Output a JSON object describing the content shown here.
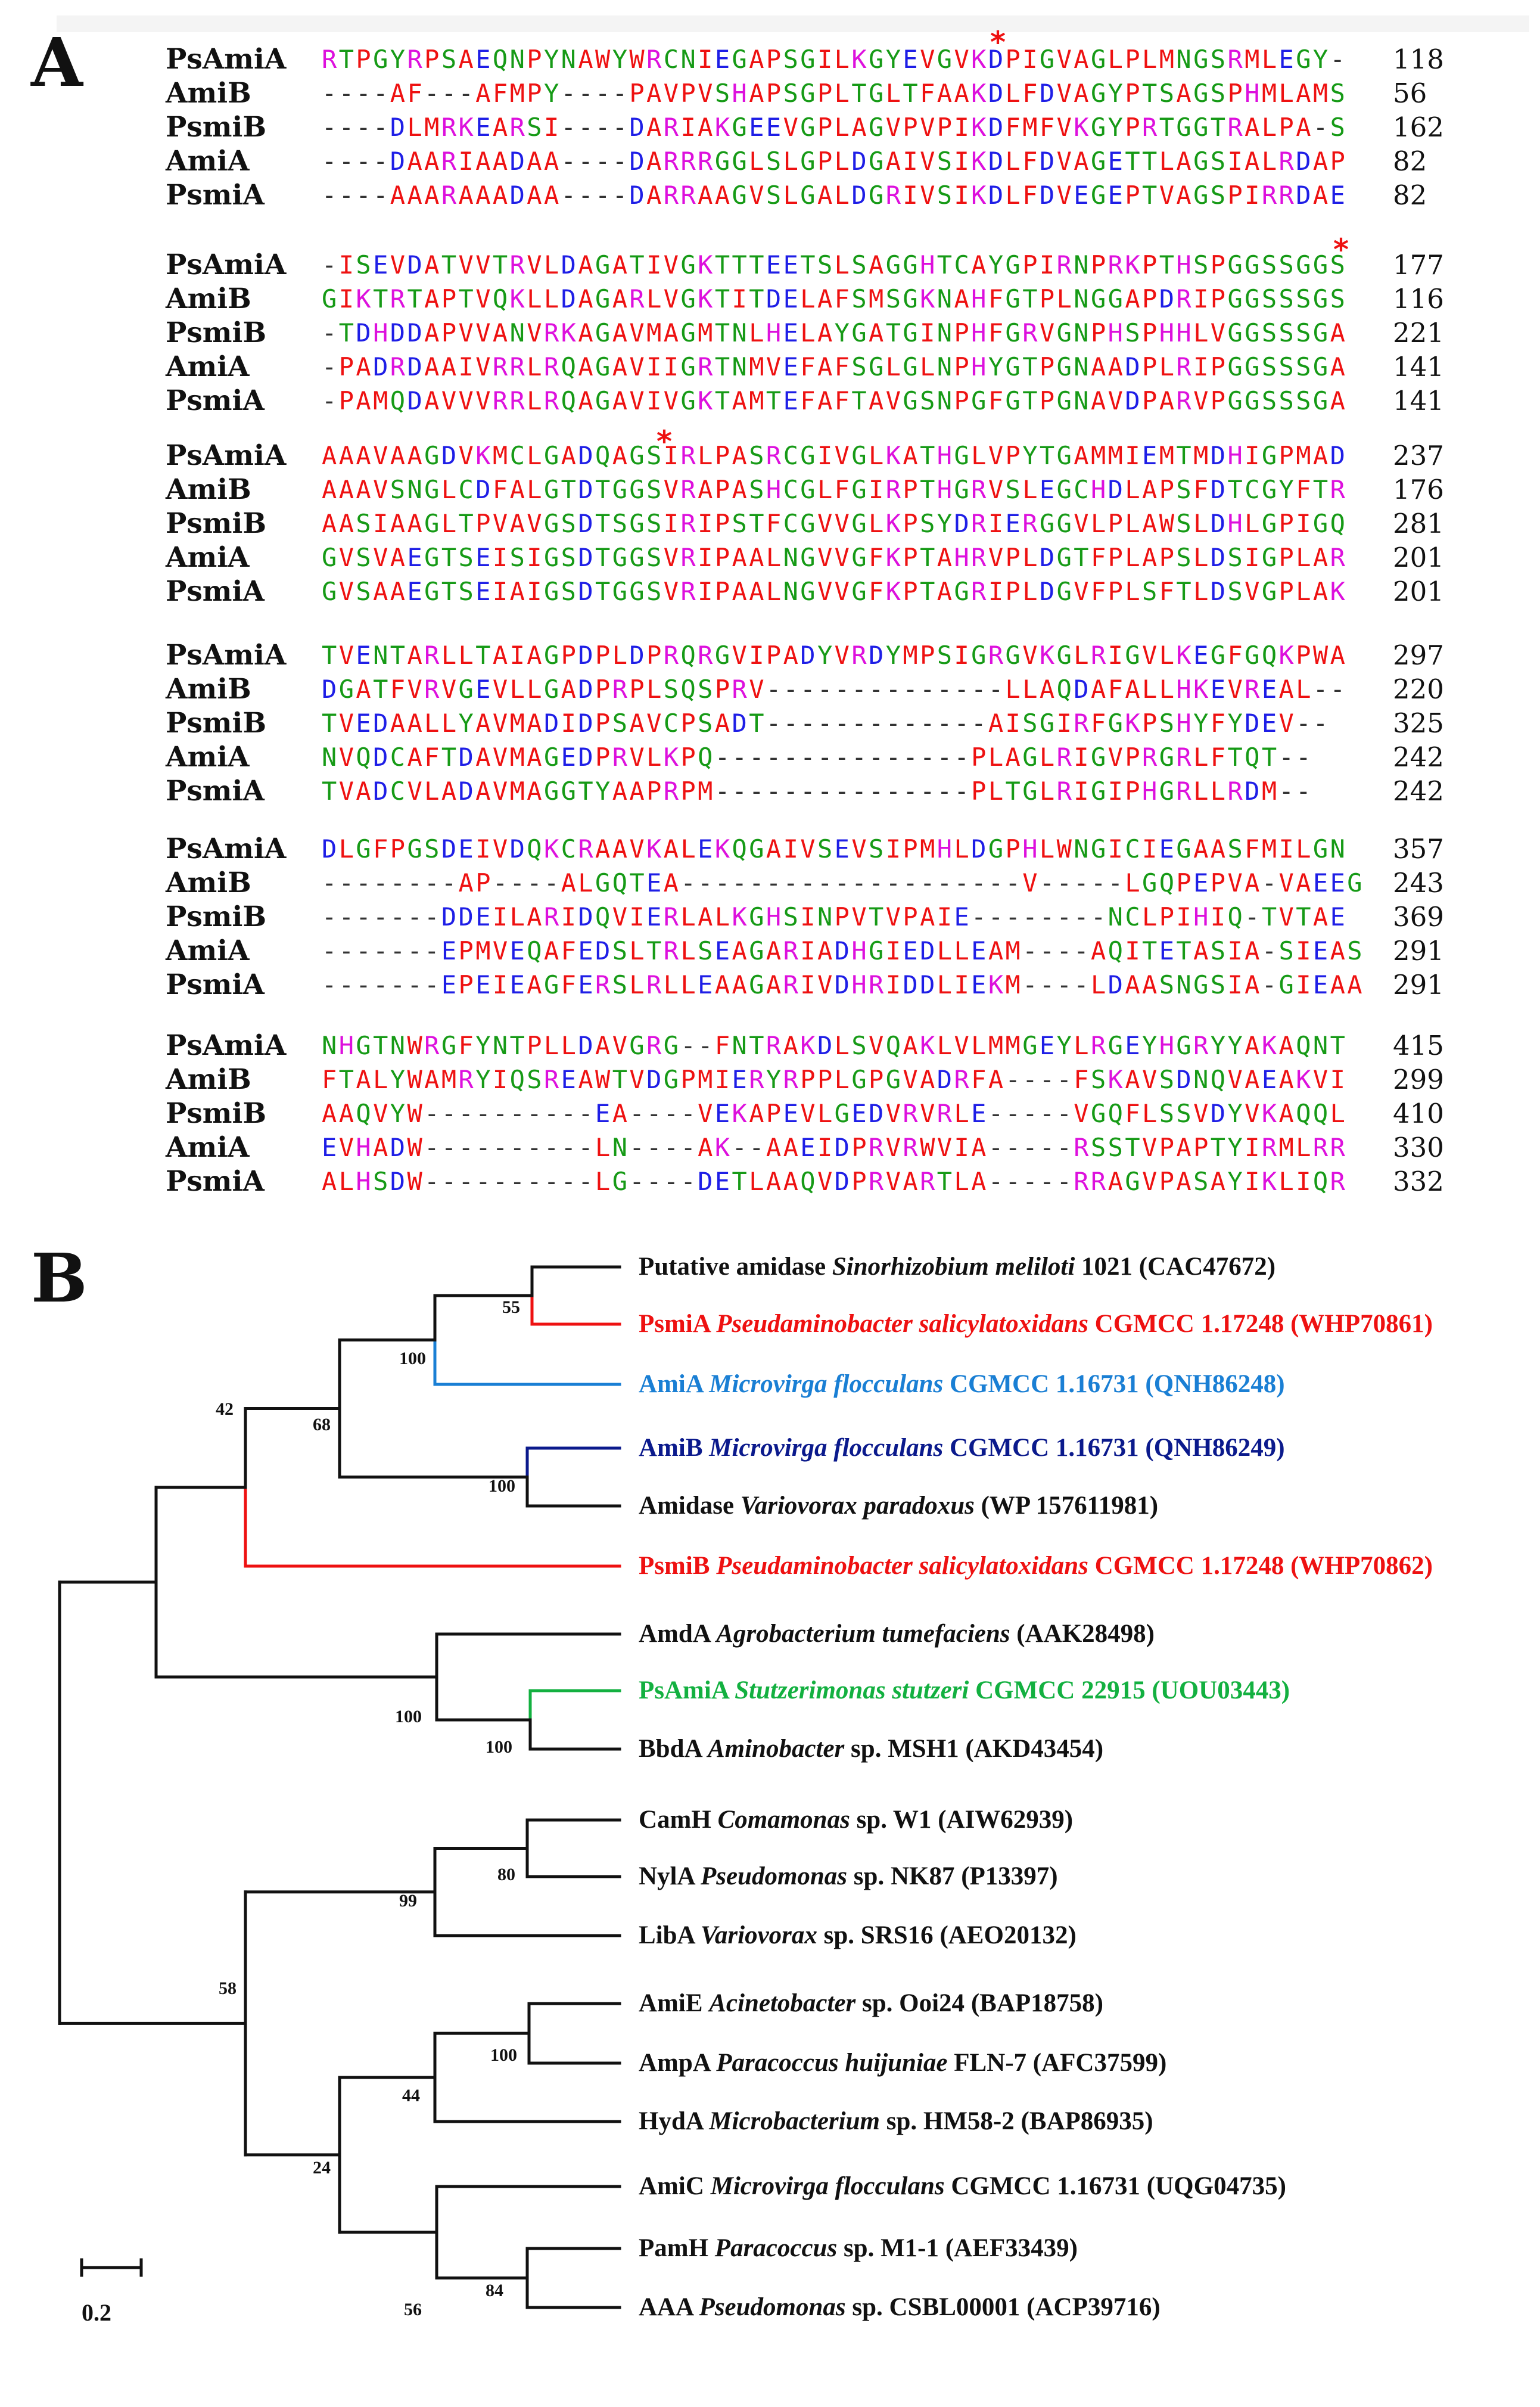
{
  "panels": {
    "a": "A",
    "b": "B"
  },
  "alignment": {
    "blocks": [
      [
        {
          "name": "PsAmiA",
          "seq": "RTPGYRPSAEQNPYNAWYWRCNIEGAPSGILKGYEVGVKDPIGVAGLPLMNGSRMLEGY-",
          "end": "118"
        },
        {
          "name": "AmiB",
          "seq": "----AF---AFMPY----PAVPVSHAPSGPLTGLTFAAKDLFDVAGYPTSAGSPHMLAMS",
          "end": "56"
        },
        {
          "name": "PsmiB",
          "seq": "----DLMRKEARSI----DARIAKGEEVGPLAGVPVPIKDFMFVKGYPRTGGTRALPA-S",
          "end": "162"
        },
        {
          "name": "AmiA",
          "seq": "----DAARIAADAA----DARRRGGLSLGPLDGAIVSIKDLFDVAGETTLAGSIALRDAP",
          "end": "82"
        },
        {
          "name": "PsmiA",
          "seq": "----AAARAAADAA----DARRAAGVSLGALDGRIVSIKDLFDVEGEPTVAGSPIRRDAE",
          "end": "82"
        }
      ],
      [
        {
          "name": "PsAmiA",
          "seq": "-ISEVDATVVTRVLDAGATIVGKTTTEETSLSAGGHTCAYGPIRNPRKPTHSPGGSSGGS",
          "end": "177"
        },
        {
          "name": "AmiB",
          "seq": "GIKTRTAPTVQKLLDAGARLVGKTITDELAFSMSGKNAHFGTPLNGGAPDRIPGGSSSGS",
          "end": "116"
        },
        {
          "name": "PsmiB",
          "seq": "-TDHDDAPVVANVRKAGAVMAGMTNLHELAYGATGINPHFGRVGNPHSPHHLVGGSSSGA",
          "end": "221"
        },
        {
          "name": "AmiA",
          "seq": "-PADRDAAIVRRLRQAGAVIIGRTNMVEFAFSGLGLNPHYGTPGNAADPLRIPGGSSSGA",
          "end": "141"
        },
        {
          "name": "PsmiA",
          "seq": "-PAMQDAVVVRRLRQAGAVIVGKTAMTEFAFTAVGSNPGFGTPGNAVDPARVPGGSSSGA",
          "end": "141"
        }
      ],
      [
        {
          "name": "PsAmiA",
          "seq": "AAAVAAGDVKMCLGADQAGSIRLPASRCGIVGLKATHGLVPYTGAMMIEMTMDHIGPMAD",
          "end": "237"
        },
        {
          "name": "AmiB",
          "seq": "AAAVSNGLCDFALGTDTGGSVRAPASHCGLFGIRPTHGRVSLEGCHDLAPSFDTCGYFTR",
          "end": "176"
        },
        {
          "name": "PsmiB",
          "seq": "AASIAAGLTPVAVGSDTSGSIRIPSTFCGVVGLKPSYDRIERGGVLPLAWSLDHLGPIGQ",
          "end": "281"
        },
        {
          "name": "AmiA",
          "seq": "GVSVAEGTSEISIGSDTGGSVRIPAALNGVVGFKPTAHRVPLDGTFPLAPSLDSIGPLAR",
          "end": "201"
        },
        {
          "name": "PsmiA",
          "seq": "GVSAAEGTSEIAIGSDTGGSVRIPAALNGVVGFKPTAGRIPLDGVFPLSFTLDSVGPLAK",
          "end": "201"
        }
      ],
      [
        {
          "name": "PsAmiA",
          "seq": "TVENTARLLTAIAGPDPLDPRQRGVIPADYVRDYMPSIGRGVKGLRIGVLKEGFGQKPWA",
          "end": "297"
        },
        {
          "name": "AmiB",
          "seq": "DGATFVRVGEVLLGADPRPLSQSPRV--------------LLAQDAFALLHKEVREAL--",
          "end": "220"
        },
        {
          "name": "PsmiB",
          "seq": "TVEDAALLYAVMADIDPSAVCPSADT-------------AISGIRFGKPSHYFYDEV--",
          "end": "325"
        },
        {
          "name": "AmiA",
          "seq": "NVQDCAFTDAVMAGEDPRVLKPQ---------------PLAGLRIGVPRGRLFTQT--",
          "end": "242"
        },
        {
          "name": "PsmiA",
          "seq": "TVADCVLADAVMAGGTYAAPRPM---------------PLTGLRIGIPHGRLLRDM--",
          "end": "242"
        }
      ],
      [
        {
          "name": "PsAmiA",
          "seq": "DLGFPGSDEIVDQKCRAAVKALEKQGAIVSEVSIPMHLDGPHLWNGICIEGAASFMILGN",
          "end": "357"
        },
        {
          "name": "AmiB",
          "seq": "--------AP----ALGQTEA--------------------V-----LGQPEPVA-VAEEG",
          "end": "243"
        },
        {
          "name": "PsmiB",
          "seq": "-------DDEILARIDQVIERLALKGHSINPVTVPAIE--------NCLPIHIQ-TVTAE",
          "end": "369"
        },
        {
          "name": "AmiA",
          "seq": "-------EPMVEQAFEDSLTRLSEAGARIADHGIEDLLEAM----AQITETASIA-SIEAS",
          "end": "291"
        },
        {
          "name": "PsmiA",
          "seq": "-------EPEIEAGFERSLRLLEAAGARIVDHRIDDLIEKM----LDAASNGSIA-GIEAA",
          "end": "291"
        }
      ],
      [
        {
          "name": "PsAmiA",
          "seq": "NHGTNWRGFYNTPLLDAVGRG--FNTRAKDLSVQAKLVLMMGEYLRGEYHGRYYAKAQNT",
          "end": "415"
        },
        {
          "name": "AmiB",
          "seq": "FTALYWAMRYIQSREAWTVDGPMIERYRPPLGPGVADRFA----FSKAVSDNQVAEAKVI",
          "end": "299"
        },
        {
          "name": "PsmiB",
          "seq": "AAQVYW----------EA----VEKAPEVLGEDVRVRLE-----VGQFLSSVDYVKAQQL",
          "end": "410"
        },
        {
          "name": "AmiA",
          "seq": "EVHADW----------LN----AK--AAEIDPRVRWVIA-----RSSTVPAPTYIRMLRR",
          "end": "330"
        },
        {
          "name": "PsmiA",
          "seq": "ALHSDW----------LG----DETLAAQVDPRVARTLA-----RRAGVPASAYIKLIQR",
          "end": "332"
        }
      ]
    ],
    "star_symbol": "*"
  },
  "tree": {
    "colors": {
      "red": "#ee1111",
      "lightblue": "#1a7fd4",
      "navy": "#0b1a8c",
      "green": "#13b040",
      "black": "#111111"
    },
    "taxa": [
      {
        "name": "Putative amidase",
        "species": "Sinorhizobium meliloti",
        "strain": "1021",
        "accession": "(CAC47672)",
        "color": "#111111"
      },
      {
        "name": "PsmiA",
        "species": "Pseudaminobacter salicylatoxidans",
        "strain": "CGMCC 1.17248",
        "accession": "(WHP70861)",
        "color": "#ee1111"
      },
      {
        "name": "AmiA",
        "species": "Microvirga flocculans",
        "strain": "CGMCC 1.16731",
        "accession": "(QNH86248)",
        "color": "#1a7fd4"
      },
      {
        "name": "AmiB",
        "species": "Microvirga flocculans",
        "strain": "CGMCC 1.16731",
        "accession": "(QNH86249)",
        "color": "#0b1a8c"
      },
      {
        "name": "Amidase",
        "species": "Variovorax paradoxus",
        "strain": "",
        "accession": "(WP 157611981)",
        "color": "#111111"
      },
      {
        "name": "PsmiB",
        "species": "Pseudaminobacter salicylatoxidans",
        "strain": "CGMCC 1.17248",
        "accession": "(WHP70862)",
        "color": "#ee1111"
      },
      {
        "name": "AmdA",
        "species": "Agrobacterium tumefaciens",
        "strain": "",
        "accession": "(AAK28498)",
        "color": "#111111"
      },
      {
        "name": "PsAmiA",
        "species": "Stutzerimonas stutzeri",
        "strain": "CGMCC 22915",
        "accession": "(UOU03443)",
        "color": "#13b040"
      },
      {
        "name": "BbdA",
        "species": "Aminobacter",
        "strain": "sp. MSH1",
        "accession": "(AKD43454)",
        "color": "#111111"
      },
      {
        "name": "CamH",
        "species": "Comamonas",
        "strain": "sp. W1",
        "accession": "(AIW62939)",
        "color": "#111111"
      },
      {
        "name": "NylA",
        "species": "Pseudomonas",
        "strain": "sp. NK87",
        "accession": "(P13397)",
        "color": "#111111"
      },
      {
        "name": "LibA",
        "species": "Variovorax",
        "strain": "sp. SRS16",
        "accession": "(AEO20132)",
        "color": "#111111"
      },
      {
        "name": "AmiE",
        "species": "Acinetobacter",
        "strain": "sp. Ooi24",
        "accession": "(BAP18758)",
        "color": "#111111"
      },
      {
        "name": "AmpA",
        "species": "Paracoccus huijuniae",
        "strain": "FLN-7",
        "accession": "(AFC37599)",
        "color": "#111111"
      },
      {
        "name": "HydA",
        "species": "Microbacterium",
        "strain": "sp. HM58-2",
        "accession": "(BAP86935)",
        "color": "#111111"
      },
      {
        "name": "AmiC",
        "species": "Microvirga flocculans",
        "strain": "CGMCC 1.16731",
        "accession": "(UQG04735)",
        "color": "#111111"
      },
      {
        "name": "PamH",
        "species": "Paracoccus",
        "strain": "sp. M1-1",
        "accession": "(AEF33439)",
        "color": "#111111"
      },
      {
        "name": "AAA",
        "species": "Pseudomonas",
        "strain": "sp. CSBL00001",
        "accession": "(ACP39716)",
        "color": "#111111"
      }
    ],
    "bootstrap": [
      "55",
      "100",
      "68",
      "100",
      "42",
      "100",
      "100",
      "80",
      "99",
      "100",
      "44",
      "58",
      "24",
      "56",
      "84"
    ],
    "scale_label": "0.2"
  }
}
